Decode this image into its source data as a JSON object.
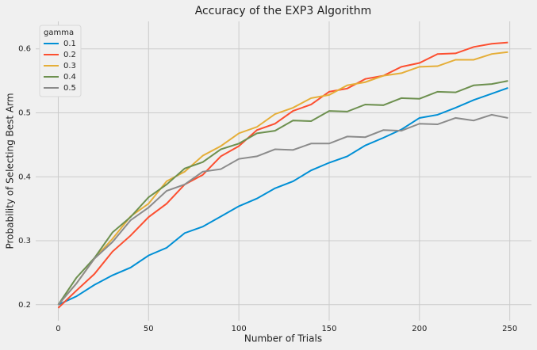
{
  "chart_data": {
    "type": "line",
    "title": "Accuracy of the EXP3 Algorithm",
    "x_label": "Number of Trials",
    "y_label": "Probability of Selecting Best Arm",
    "legend_title": "gamma",
    "legend": "upper left",
    "grid": true,
    "x": [
      0,
      10,
      20,
      30,
      40,
      50,
      60,
      70,
      80,
      90,
      100,
      110,
      120,
      130,
      140,
      150,
      160,
      170,
      180,
      190,
      200,
      210,
      220,
      230,
      240,
      249
    ],
    "series": [
      {
        "name": "0.1",
        "color": "#008fd5",
        "values": [
          0.2,
          0.213,
          0.231,
          0.246,
          0.258,
          0.277,
          0.289,
          0.312,
          0.322,
          0.338,
          0.354,
          0.366,
          0.382,
          0.393,
          0.41,
          0.422,
          0.432,
          0.449,
          0.461,
          0.474,
          0.492,
          0.497,
          0.508,
          0.52,
          0.53,
          0.539
        ]
      },
      {
        "name": "0.2",
        "color": "#fc4f30",
        "values": [
          0.195,
          0.222,
          0.248,
          0.283,
          0.308,
          0.337,
          0.358,
          0.388,
          0.403,
          0.432,
          0.448,
          0.473,
          0.483,
          0.503,
          0.513,
          0.533,
          0.538,
          0.553,
          0.558,
          0.572,
          0.578,
          0.592,
          0.593,
          0.603,
          0.608,
          0.61
        ]
      },
      {
        "name": "0.3",
        "color": "#e5ae38",
        "values": [
          0.2,
          0.233,
          0.272,
          0.303,
          0.338,
          0.358,
          0.393,
          0.408,
          0.433,
          0.448,
          0.468,
          0.478,
          0.498,
          0.508,
          0.523,
          0.528,
          0.543,
          0.548,
          0.558,
          0.562,
          0.572,
          0.573,
          0.583,
          0.583,
          0.592,
          0.595
        ]
      },
      {
        "name": "0.4",
        "color": "#6d904f",
        "values": [
          0.2,
          0.242,
          0.273,
          0.313,
          0.337,
          0.368,
          0.388,
          0.413,
          0.423,
          0.443,
          0.452,
          0.468,
          0.472,
          0.488,
          0.487,
          0.503,
          0.502,
          0.513,
          0.512,
          0.523,
          0.522,
          0.533,
          0.532,
          0.543,
          0.545,
          0.55
        ]
      },
      {
        "name": "0.5",
        "color": "#8b8b8b",
        "values": [
          0.2,
          0.233,
          0.272,
          0.298,
          0.332,
          0.352,
          0.378,
          0.388,
          0.408,
          0.412,
          0.428,
          0.432,
          0.443,
          0.442,
          0.452,
          0.452,
          0.463,
          0.462,
          0.473,
          0.472,
          0.483,
          0.482,
          0.492,
          0.488,
          0.497,
          0.492
        ]
      }
    ],
    "xlim": [
      -12.5,
      262
    ],
    "ylim": [
      0.175,
      0.643
    ],
    "xticks": [
      0,
      50,
      100,
      150,
      200,
      250
    ],
    "yticks": [
      0.2,
      0.3,
      0.4,
      0.5,
      0.6
    ]
  }
}
